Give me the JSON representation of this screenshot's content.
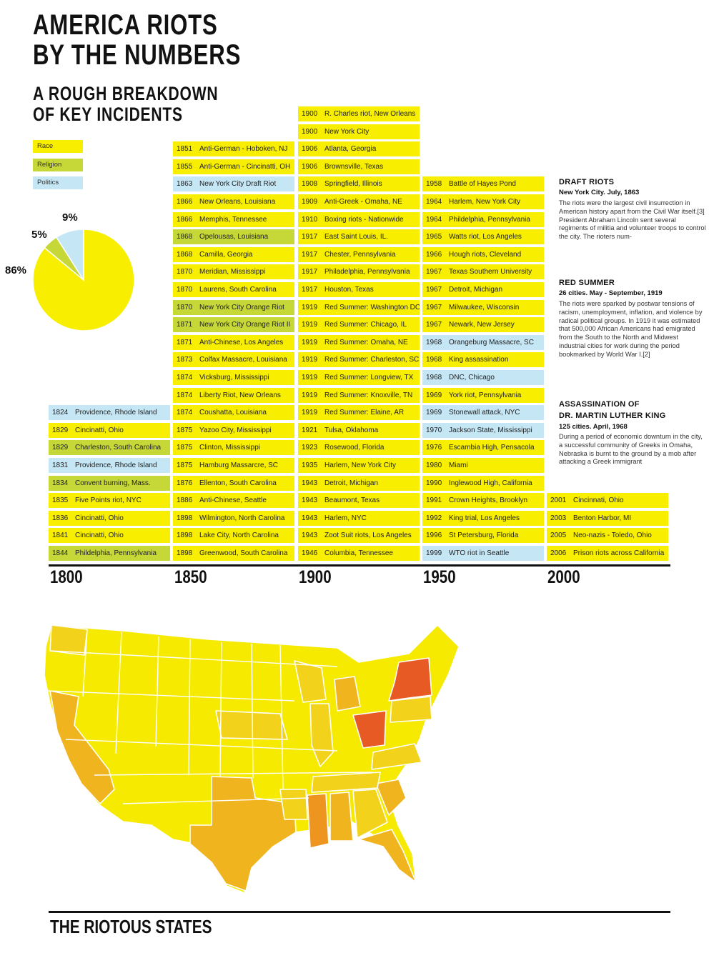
{
  "title_line1": "AMERICA RIOTS",
  "title_line2": "BY THE NUMBERS",
  "subtitle_line1": "A ROUGH BREAKDOWN",
  "subtitle_line2": "OF KEY INCIDENTS",
  "colors": {
    "race": "#f7ee00",
    "religion": "#c5d837",
    "politics": "#c4e6f5"
  },
  "legend": [
    {
      "key": "race",
      "label": "Race"
    },
    {
      "key": "religion",
      "label": "Religion"
    },
    {
      "key": "politics",
      "label": "Politics"
    }
  ],
  "chart_data": [
    {
      "type": "pie",
      "slices": [
        {
          "label": "Race",
          "value": 86,
          "display": "86%"
        },
        {
          "label": "Religion",
          "value": 5,
          "display": "5%"
        },
        {
          "label": "Politics",
          "value": 9,
          "display": "9%"
        }
      ]
    },
    {
      "type": "table",
      "axis_ticks": [
        "1800",
        "1850",
        "1900",
        "1950",
        "2000"
      ],
      "columns": [
        {
          "decade": "1800",
          "events": [
            {
              "year": "1824",
              "name": "Providence, Rhode Island",
              "category": "politics"
            },
            {
              "year": "1829",
              "name": "Cincinatti, Ohio",
              "category": "race"
            },
            {
              "year": "1829",
              "name": "Charleston, South Carolina",
              "category": "religion"
            },
            {
              "year": "1831",
              "name": "Providence, Rhode Island",
              "category": "politics"
            },
            {
              "year": "1834",
              "name": "Convent burning, Mass.",
              "category": "religion"
            },
            {
              "year": "1835",
              "name": "Five Points riot, NYC",
              "category": "race"
            },
            {
              "year": "1836",
              "name": "Cincinatti, Ohio",
              "category": "race"
            },
            {
              "year": "1841",
              "name": "Cincinatti, Ohio",
              "category": "race"
            },
            {
              "year": "1844",
              "name": "Phildelphia, Pennsylvania",
              "category": "religion"
            }
          ]
        },
        {
          "decade": "1850",
          "events": [
            {
              "year": "1851",
              "name": "Anti-German - Hoboken, NJ",
              "category": "race"
            },
            {
              "year": "1855",
              "name": "Anti-German - Cincinatti, OH",
              "category": "race"
            },
            {
              "year": "1863",
              "name": "New York City Draft Riot",
              "category": "politics"
            },
            {
              "year": "1866",
              "name": "New Orleans, Louisiana",
              "category": "race"
            },
            {
              "year": "1866",
              "name": "Memphis, Tennessee",
              "category": "race"
            },
            {
              "year": "1868",
              "name": "Opelousas, Louisiana",
              "category": "religion"
            },
            {
              "year": "1868",
              "name": "Camilla, Georgia",
              "category": "race"
            },
            {
              "year": "1870",
              "name": "Meridian, Mississippi",
              "category": "race"
            },
            {
              "year": "1870",
              "name": "Laurens, South Carolina",
              "category": "race"
            },
            {
              "year": "1870",
              "name": "New York City Orange Riot",
              "category": "religion"
            },
            {
              "year": "1871",
              "name": "New York City Orange Riot II",
              "category": "religion"
            },
            {
              "year": "1871",
              "name": "Anti-Chinese, Los Angeles",
              "category": "race"
            },
            {
              "year": "1873",
              "name": "Colfax Massacre, Louisiana",
              "category": "race"
            },
            {
              "year": "1874",
              "name": "Vicksburg, Mississippi",
              "category": "race"
            },
            {
              "year": "1874",
              "name": "Liberty Riot, New Orleans",
              "category": "race"
            },
            {
              "year": "1874",
              "name": "Coushatta, Louisiana",
              "category": "race"
            },
            {
              "year": "1875",
              "name": "Yazoo City, Mississippi",
              "category": "race"
            },
            {
              "year": "1875",
              "name": "Clinton, Mississippi",
              "category": "race"
            },
            {
              "year": "1875",
              "name": "Hamburg Massarcre, SC",
              "category": "race"
            },
            {
              "year": "1876",
              "name": "Ellenton, South Carolina",
              "category": "race"
            },
            {
              "year": "1886",
              "name": "Anti-Chinese, Seattle",
              "category": "race"
            },
            {
              "year": "1898",
              "name": "Wilmington, North Carolina",
              "category": "race"
            },
            {
              "year": "1898",
              "name": "Lake City, North Carolina",
              "category": "race"
            },
            {
              "year": "1898",
              "name": "Greenwood, South Carolina",
              "category": "race"
            }
          ]
        },
        {
          "decade": "1900",
          "events": [
            {
              "year": "1900",
              "name": "R. Charles riot, New Orleans",
              "category": "race"
            },
            {
              "year": "1900",
              "name": "New York City",
              "category": "race"
            },
            {
              "year": "1906",
              "name": "Atlanta, Georgia",
              "category": "race"
            },
            {
              "year": "1906",
              "name": "Brownsville, Texas",
              "category": "race"
            },
            {
              "year": "1908",
              "name": "Springfield, Illinois",
              "category": "race"
            },
            {
              "year": "1909",
              "name": "Anti-Greek - Omaha, NE",
              "category": "race"
            },
            {
              "year": "1910",
              "name": "Boxing riots - Nationwide",
              "category": "race"
            },
            {
              "year": "1917",
              "name": "East Saint Louis, IL.",
              "category": "race"
            },
            {
              "year": "1917",
              "name": "Chester, Pennsylvania",
              "category": "race"
            },
            {
              "year": "1917",
              "name": "Philadelphia, Pennsylvania",
              "category": "race"
            },
            {
              "year": "1917",
              "name": "Houston, Texas",
              "category": "race"
            },
            {
              "year": "1919",
              "name": "Red Summer: Washington DC",
              "category": "race"
            },
            {
              "year": "1919",
              "name": "Red Summer: Chicago, IL",
              "category": "race"
            },
            {
              "year": "1919",
              "name": "Red Summer: Omaha, NE",
              "category": "race"
            },
            {
              "year": "1919",
              "name": "Red Summer: Charleston, SC",
              "category": "race"
            },
            {
              "year": "1919",
              "name": "Red Summer: Longview, TX",
              "category": "race"
            },
            {
              "year": "1919",
              "name": "Red Summer: Knoxville, TN",
              "category": "race"
            },
            {
              "year": "1919",
              "name": "Red Summer: Elaine, AR",
              "category": "race"
            },
            {
              "year": "1921",
              "name": "Tulsa, Oklahoma",
              "category": "race"
            },
            {
              "year": "1923",
              "name": "Rosewood, Florida",
              "category": "race"
            },
            {
              "year": "1935",
              "name": "Harlem, New York City",
              "category": "race"
            },
            {
              "year": "1943",
              "name": "Detroit, Michigan",
              "category": "race"
            },
            {
              "year": "1943",
              "name": "Beaumont, Texas",
              "category": "race"
            },
            {
              "year": "1943",
              "name": "Harlem, NYC",
              "category": "race"
            },
            {
              "year": "1943",
              "name": "Zoot Suit riots, Los Angeles",
              "category": "race"
            },
            {
              "year": "1946",
              "name": "Columbia, Tennessee",
              "category": "race"
            }
          ]
        },
        {
          "decade": "1950",
          "events": [
            {
              "year": "1958",
              "name": "Battle of Hayes Pond",
              "category": "race"
            },
            {
              "year": "1964",
              "name": "Harlem, New York City",
              "category": "race"
            },
            {
              "year": "1964",
              "name": "Phildelphia, Pennsylvania",
              "category": "race"
            },
            {
              "year": "1965",
              "name": "Watts riot, Los Angeles",
              "category": "race"
            },
            {
              "year": "1966",
              "name": "Hough riots, Cleveland",
              "category": "race"
            },
            {
              "year": "1967",
              "name": "Texas Southern University",
              "category": "race"
            },
            {
              "year": "1967",
              "name": "Detroit, Michigan",
              "category": "race"
            },
            {
              "year": "1967",
              "name": "Milwaukee, Wisconsin",
              "category": "race"
            },
            {
              "year": "1967",
              "name": "Newark, New Jersey",
              "category": "race"
            },
            {
              "year": "1968",
              "name": "Orangeburg Massacre, SC",
              "category": "politics"
            },
            {
              "year": "1968",
              "name": "King assassination",
              "category": "race"
            },
            {
              "year": "1968",
              "name": "DNC, Chicago",
              "category": "politics"
            },
            {
              "year": "1969",
              "name": "York riot, Pennsylvania",
              "category": "race"
            },
            {
              "year": "1969",
              "name": "Stonewall attack, NYC",
              "category": "politics"
            },
            {
              "year": "1970",
              "name": "Jackson State, Mississippi",
              "category": "politics"
            },
            {
              "year": "1976",
              "name": "Escambia High, Pensacola",
              "category": "race"
            },
            {
              "year": "1980",
              "name": "Miami",
              "category": "race"
            },
            {
              "year": "1990",
              "name": "Inglewood High, California",
              "category": "race"
            },
            {
              "year": "1991",
              "name": "Crown Heights, Brooklyn",
              "category": "race"
            },
            {
              "year": "1992",
              "name": "King trial, Los Angeles",
              "category": "race"
            },
            {
              "year": "1996",
              "name": "St Petersburg, Florida",
              "category": "race"
            },
            {
              "year": "1999",
              "name": "WTO riot in Seattle",
              "category": "politics"
            }
          ]
        },
        {
          "decade": "2000",
          "events": [
            {
              "year": "2001",
              "name": "Cincinnati, Ohio",
              "category": "race"
            },
            {
              "year": "2003",
              "name": "Benton Harbor, MI",
              "category": "race"
            },
            {
              "year": "2005",
              "name": "Neo-nazis - Toledo, Ohio",
              "category": "race"
            },
            {
              "year": "2006",
              "name": "Prison riots across California",
              "category": "race"
            }
          ]
        }
      ]
    }
  ],
  "notes": [
    {
      "title": "DRAFT RIOTS",
      "subtitle": "New York City. July, 1863",
      "body": "The riots were the largest civil insurrection in American history apart from the Civil War itself.[3] President Abraham Lincoln sent several regiments of militia and volunteer troops to control the city. The rioters num-"
    },
    {
      "title": "RED SUMMER",
      "subtitle": "26 cities. May - September, 1919",
      "body": "The riots were sparked by postwar tensions of racism, unemployment, inflation, and violence by radical political groups. In 1919 it was estimated that 500,000 African Americans had emigrated from the South to the North and Midwest industrial cities for work during the period bookmarked by World War I.[2]"
    },
    {
      "title": "ASSASSINATION OF",
      "title2": "DR. MARTIN LUTHER KING",
      "subtitle": "125 cities. April, 1968",
      "body": "During a period of economic downturn in the city, a successful community of Greeks in Omaha, Nebraska is burnt to the ground by a mob after attacking a Greek immigrant"
    }
  ],
  "map_title": "THE RIOTOUS STATES"
}
